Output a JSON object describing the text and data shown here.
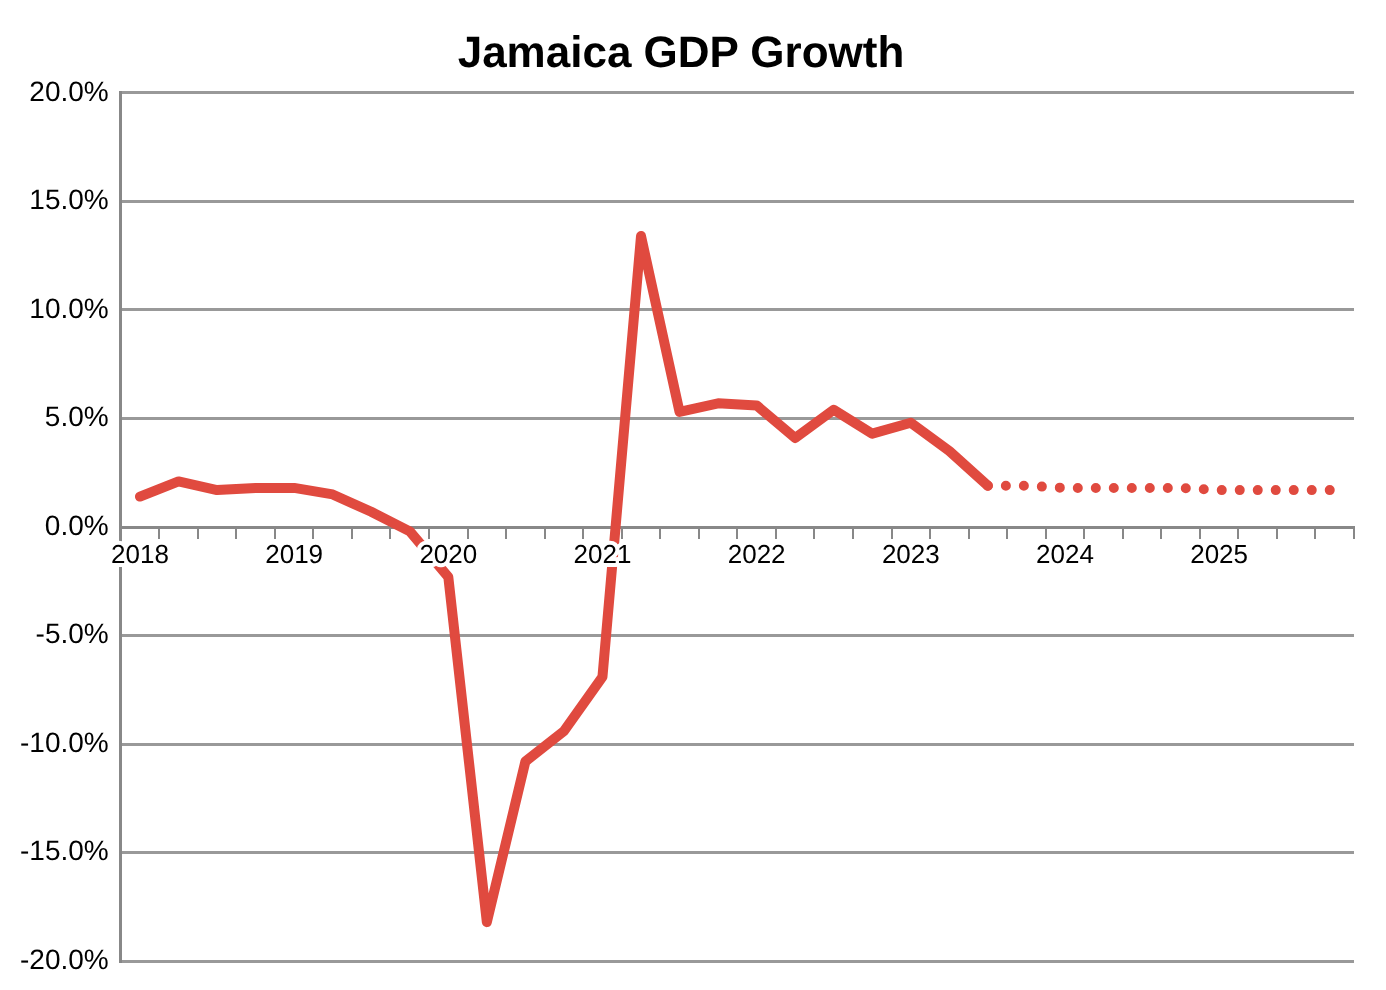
{
  "chart_data": {
    "type": "line",
    "title": "Jamaica GDP Growth",
    "categories": [
      "2018",
      null,
      null,
      null,
      "2019",
      null,
      null,
      null,
      "2020",
      null,
      null,
      null,
      "2021",
      null,
      null,
      null,
      "2022",
      null,
      null,
      null,
      "2023",
      null,
      null,
      null,
      "2024",
      null,
      null,
      null,
      "2025",
      null,
      null,
      null
    ],
    "series": [
      {
        "color": "#e04a3f",
        "line_style": "solid",
        "values": [
          1.4,
          2.1,
          1.7,
          1.8,
          1.8,
          1.5,
          0.7,
          -0.2,
          -2.3,
          -18.2,
          -10.8,
          -9.4,
          -6.9,
          13.4,
          5.3,
          5.7,
          5.6,
          4.1,
          5.4,
          4.3,
          4.8,
          3.5,
          1.9,
          null,
          null,
          null,
          null,
          null,
          null,
          null,
          null,
          null
        ]
      },
      {
        "color": "#e04a3f",
        "line_style": "dotted",
        "values": [
          null,
          null,
          null,
          null,
          null,
          null,
          null,
          null,
          null,
          null,
          null,
          null,
          null,
          null,
          null,
          null,
          null,
          null,
          null,
          null,
          null,
          null,
          1.9,
          1.9,
          1.8,
          1.8,
          1.8,
          1.8,
          1.7,
          1.7,
          1.7,
          1.7
        ]
      }
    ],
    "ylim": [
      -20,
      20
    ],
    "yticks": [
      {
        "value": -20,
        "label": "-20.0%"
      },
      {
        "value": -15,
        "label": "-15.0%"
      },
      {
        "value": -10,
        "label": "-10.0%"
      },
      {
        "value": -5,
        "label": "-5.0%"
      },
      {
        "value": 0,
        "label": "0.0%"
      },
      {
        "value": 5,
        "label": "5.0%"
      },
      {
        "value": 10,
        "label": "10.0%"
      },
      {
        "value": 15,
        "label": "15.0%"
      },
      {
        "value": 20,
        "label": "20.0%"
      }
    ],
    "grid": "y",
    "legend": false,
    "marker": "none"
  }
}
